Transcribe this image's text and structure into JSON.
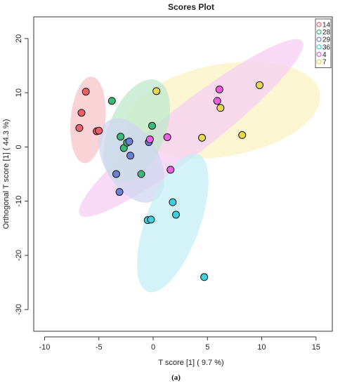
{
  "chart_data": {
    "type": "scatter",
    "title": "Scores Plot",
    "xlabel": "T score [1] ( 9.7 %)",
    "ylabel": "Orthogonal T score [1] ( 44.3 %)",
    "xlim": [
      -11,
      16.5
    ],
    "ylim": [
      -34,
      24
    ],
    "x_ticks": [
      -10,
      -5,
      0,
      5,
      10,
      15
    ],
    "y_ticks": [
      -30,
      -20,
      -10,
      0,
      10,
      20
    ],
    "grid": false,
    "legend_position": "top-right",
    "series": [
      {
        "name": "14",
        "color": "#f0606a",
        "fill": "#f8c4c8",
        "points": [
          [
            -6.2,
            10.2
          ],
          [
            -6.6,
            6.3
          ],
          [
            -6.8,
            3.5
          ],
          [
            -5.2,
            2.9
          ],
          [
            -5.0,
            3.0
          ]
        ]
      },
      {
        "name": "28",
        "color": "#3cb878",
        "fill": "#bfe8cc",
        "points": [
          [
            -3.8,
            8.5
          ],
          [
            -0.1,
            3.9
          ],
          [
            -3.0,
            1.9
          ],
          [
            -2.7,
            -0.2
          ],
          [
            -1.1,
            -5.0
          ],
          [
            -2.4,
            0.8
          ]
        ]
      },
      {
        "name": "29",
        "color": "#6a7fd6",
        "fill": "#cfd6f2",
        "points": [
          [
            -2.2,
            1.0
          ],
          [
            -2.1,
            -1.6
          ],
          [
            -0.4,
            0.9
          ],
          [
            -3.4,
            -5.0
          ],
          [
            -3.1,
            -8.3
          ]
        ]
      },
      {
        "name": "36",
        "color": "#3fd0e0",
        "fill": "#c4eff5",
        "points": [
          [
            1.8,
            -10.2
          ],
          [
            2.1,
            -12.5
          ],
          [
            -0.5,
            -13.5
          ],
          [
            -0.2,
            -13.4
          ],
          [
            4.7,
            -24.0
          ]
        ]
      },
      {
        "name": "4",
        "color": "#ee5fe0",
        "fill": "#f7cdf3",
        "points": [
          [
            -0.3,
            1.4
          ],
          [
            1.3,
            1.8
          ],
          [
            1.6,
            -4.2
          ],
          [
            6.1,
            10.6
          ],
          [
            5.9,
            8.5
          ]
        ]
      },
      {
        "name": "7",
        "color": "#e8d84a",
        "fill": "#faf3c2",
        "points": [
          [
            0.3,
            10.3
          ],
          [
            9.8,
            11.4
          ],
          [
            6.2,
            7.2
          ],
          [
            4.5,
            1.7
          ],
          [
            8.2,
            2.2
          ]
        ]
      }
    ],
    "ellipses": [
      {
        "series": "14",
        "cx": -6.0,
        "cy": 5.0,
        "rx": 1.6,
        "ry": 8.0,
        "angle": -5
      },
      {
        "series": "7",
        "cx": 6.5,
        "cy": 6.8,
        "rx": 9.0,
        "ry": 8.5,
        "angle": 10
      },
      {
        "series": "4",
        "cx": 3.5,
        "cy": 3.5,
        "rx": 13.0,
        "ry": 4.5,
        "angle": 38
      },
      {
        "series": "28",
        "cx": -1.5,
        "cy": 3.0,
        "rx": 2.6,
        "ry": 10.0,
        "angle": -22
      },
      {
        "series": "29",
        "cx": -2.0,
        "cy": -2.5,
        "rx": 2.5,
        "ry": 8.5,
        "angle": 30
      },
      {
        "series": "36",
        "cx": 1.8,
        "cy": -14.0,
        "rx": 2.5,
        "ry": 13.5,
        "angle": -20
      }
    ]
  },
  "caption": "(a)"
}
